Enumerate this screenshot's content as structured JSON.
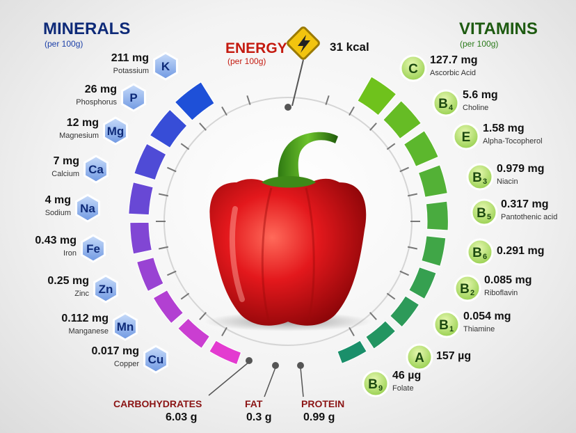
{
  "minerals": {
    "title": "MINERALS",
    "subtitle": "(per 100g)",
    "items": [
      {
        "symbol": "K",
        "amount": "211",
        "unit": "mg",
        "name": "Potassium"
      },
      {
        "symbol": "P",
        "amount": "26",
        "unit": "mg",
        "name": "Phosphorus"
      },
      {
        "symbol": "Mg",
        "amount": "12",
        "unit": "mg",
        "name": "Magnesium"
      },
      {
        "symbol": "Ca",
        "amount": "7",
        "unit": "mg",
        "name": "Calcium"
      },
      {
        "symbol": "Na",
        "amount": "4",
        "unit": "mg",
        "name": "Sodium"
      },
      {
        "symbol": "Fe",
        "amount": "0.43",
        "unit": "mg",
        "name": "Iron"
      },
      {
        "symbol": "Zn",
        "amount": "0.25",
        "unit": "mg",
        "name": "Zinc"
      },
      {
        "symbol": "Mn",
        "amount": "0.112",
        "unit": "mg",
        "name": "Manganese"
      },
      {
        "symbol": "Cu",
        "amount": "0.017",
        "unit": "mg",
        "name": "Copper"
      }
    ]
  },
  "vitamins": {
    "title": "VITAMINS",
    "subtitle": "(per 100g)",
    "items": [
      {
        "letter": "C",
        "sub": "",
        "amount": "127.7",
        "unit": "mg",
        "name": "Ascorbic Acid"
      },
      {
        "letter": "B",
        "sub": "4",
        "amount": "5.6",
        "unit": "mg",
        "name": "Choline"
      },
      {
        "letter": "E",
        "sub": "",
        "amount": "1.58",
        "unit": "mg",
        "name": "Alpha-Tocopherol"
      },
      {
        "letter": "B",
        "sub": "3",
        "amount": "0.979",
        "unit": "mg",
        "name": "Niacin"
      },
      {
        "letter": "B",
        "sub": "5",
        "amount": "0.317",
        "unit": "mg",
        "name": "Pantothenic acid"
      },
      {
        "letter": "B",
        "sub": "6",
        "amount": "0.291",
        "unit": "mg",
        "name": ""
      },
      {
        "letter": "B",
        "sub": "2",
        "amount": "0.085",
        "unit": "mg",
        "name": "Riboflavin"
      },
      {
        "letter": "B",
        "sub": "1",
        "amount": "0.054",
        "unit": "mg",
        "name": "Thiamine"
      },
      {
        "letter": "A",
        "sub": "",
        "amount": "157",
        "unit": "µg",
        "name": ""
      },
      {
        "letter": "B",
        "sub": "9",
        "amount": "46",
        "unit": "µg",
        "name": "Folate"
      }
    ]
  },
  "energy": {
    "title": "ENERGY",
    "subtitle": "(per 100g)",
    "value": "31 kcal"
  },
  "macros": [
    {
      "name": "CARBOHYDRATES",
      "value": "6.03 g"
    },
    {
      "name": "FAT",
      "value": "0.3 g"
    },
    {
      "name": "PROTEIN",
      "value": "0.99 g"
    }
  ],
  "colors": {
    "minerals_title": "#0e2a78",
    "vitamins_title": "#1d5a10",
    "energy_title": "#c41a0f",
    "mineral_bar_top": "#1e50d8",
    "mineral_bar_bottom": "#e33bd0",
    "vitamin_bar_top": "#6fc21c",
    "vitamin_bar_bottom": "#1a8f6a",
    "hexagon": "#8fb4ec",
    "vitamin_circle": "#b7e26a",
    "pepper": "#e0161a"
  }
}
